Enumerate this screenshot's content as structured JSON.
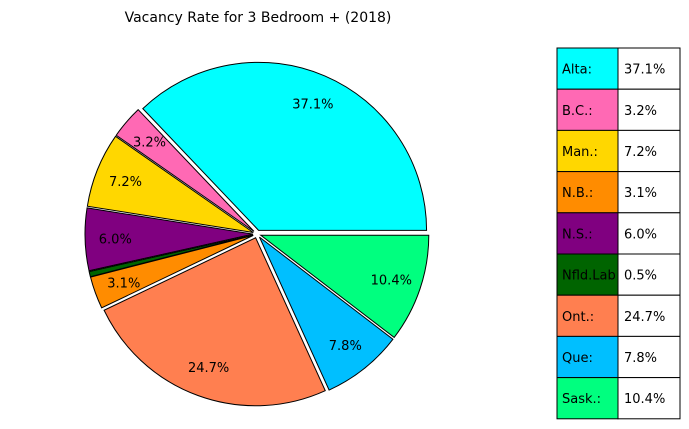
{
  "chart_data": {
    "type": "pie",
    "title": "Vacancy Rate for 3 Bedroom + (2018)",
    "slices": [
      {
        "label": "Alta:",
        "value": 37.1,
        "pct_label": "37.1%",
        "color": "#00ffff"
      },
      {
        "label": "B.C.:",
        "value": 3.2,
        "pct_label": "3.2%",
        "color": "#ff69b4"
      },
      {
        "label": "Man.:",
        "value": 7.2,
        "pct_label": "7.2%",
        "color": "#ffd700"
      },
      {
        "label": "N.B.:",
        "value": 3.1,
        "pct_label": "3.1%",
        "color": "#ff8c00"
      },
      {
        "label": "N.S.:",
        "value": 6.0,
        "pct_label": "6.0%",
        "color": "#800080"
      },
      {
        "label": "Nfld.Lab",
        "value": 0.5,
        "pct_label": "0.5%",
        "color": "#006400"
      },
      {
        "label": "Ont.:",
        "value": 24.7,
        "pct_label": "24.7%",
        "color": "#ff7f50"
      },
      {
        "label": "Que:",
        "value": 7.8,
        "pct_label": "7.8%",
        "color": "#00bfff"
      },
      {
        "label": "Sask.:",
        "value": 10.4,
        "pct_label": "10.4%",
        "color": "#00ff7f"
      }
    ],
    "pie_order": [
      0,
      1,
      2,
      4,
      5,
      3,
      6,
      7,
      8
    ],
    "legend": "table-right"
  }
}
